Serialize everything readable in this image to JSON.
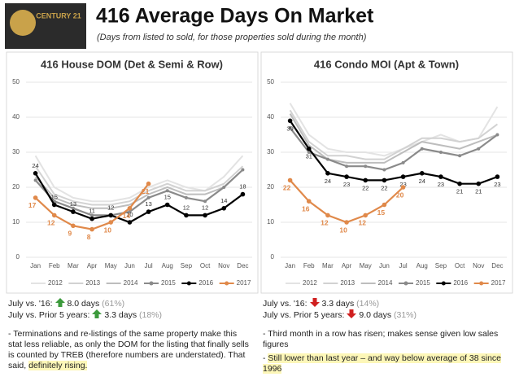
{
  "slide": {
    "title": "416 Average Days On Market",
    "subtitle": "(Days from listed to sold, for those properties sold during the month)",
    "logo": "CENTURY 21"
  },
  "chart_data": [
    {
      "type": "line",
      "title": "416 House DOM (Det & Semi & Row)",
      "categories": [
        "Jan",
        "Feb",
        "Mar",
        "Apr",
        "May",
        "Jun",
        "Jul",
        "Aug",
        "Sep",
        "Oct",
        "Nov",
        "Dec"
      ],
      "ylim": [
        0,
        50
      ],
      "yticks": [
        0,
        10,
        20,
        30,
        40,
        50
      ],
      "grid": true,
      "legend": "bottom",
      "series": [
        {
          "name": "2012",
          "color": "#e3e3e3",
          "values": [
            29,
            20,
            17,
            16,
            16,
            17,
            20,
            22,
            20,
            19,
            23,
            29
          ]
        },
        {
          "name": "2013",
          "color": "#d2d2d2",
          "values": [
            26,
            18,
            16,
            15,
            15,
            16,
            19,
            21,
            19,
            19,
            21,
            26
          ]
        },
        {
          "name": "2014",
          "color": "#bdbdbd",
          "values": [
            23,
            17,
            15,
            14,
            14,
            15,
            18,
            20,
            18,
            18,
            20,
            25
          ]
        },
        {
          "name": "2015",
          "color": "#8a8a8a",
          "markers": true,
          "values": [
            22,
            16,
            14,
            12,
            12,
            13,
            17,
            19,
            17,
            16,
            20,
            25
          ]
        },
        {
          "name": "2016",
          "color": "#000000",
          "markers": true,
          "labels": "above",
          "values": [
            24,
            15,
            13,
            11,
            12,
            10,
            13,
            15,
            12,
            12,
            14,
            18
          ]
        },
        {
          "name": "2017",
          "color": "#e0894a",
          "markers": true,
          "labels": "below",
          "values": [
            17,
            12,
            9,
            8,
            10,
            14,
            21,
            null,
            null,
            null,
            null,
            null
          ]
        }
      ]
    },
    {
      "type": "line",
      "title": "416 Condo MOI (Apt & Town)",
      "categories": [
        "Jan",
        "Feb",
        "Mar",
        "Apr",
        "May",
        "Jun",
        "Jul",
        "Aug",
        "Sep",
        "Oct",
        "Nov",
        "Dec"
      ],
      "ylim": [
        0,
        50
      ],
      "yticks": [
        0,
        10,
        20,
        30,
        40,
        50
      ],
      "grid": true,
      "legend": "bottom",
      "series": [
        {
          "name": "2012",
          "color": "#e3e3e3",
          "values": [
            44,
            35,
            31,
            30,
            30,
            29,
            31,
            33,
            35,
            33,
            34,
            43
          ]
        },
        {
          "name": "2013",
          "color": "#d2d2d2",
          "values": [
            42,
            33,
            29,
            29,
            28,
            28,
            31,
            34,
            34,
            33,
            34,
            38
          ]
        },
        {
          "name": "2014",
          "color": "#bdbdbd",
          "values": [
            41,
            32,
            28,
            27,
            27,
            27,
            30,
            33,
            32,
            31,
            33,
            35
          ]
        },
        {
          "name": "2015",
          "color": "#8a8a8a",
          "markers": true,
          "values": [
            37,
            30,
            28,
            26,
            26,
            25,
            27,
            31,
            30,
            29,
            31,
            35
          ]
        },
        {
          "name": "2016",
          "color": "#000000",
          "markers": true,
          "labels": "below",
          "values": [
            39,
            31,
            24,
            23,
            22,
            22,
            23,
            24,
            23,
            21,
            21,
            23
          ]
        },
        {
          "name": "2017",
          "color": "#e0894a",
          "markers": true,
          "labels": "below",
          "values": [
            22,
            16,
            12,
            10,
            12,
            15,
            20,
            null,
            null,
            null,
            null,
            null
          ]
        }
      ]
    }
  ],
  "notes": [
    {
      "lines": [
        {
          "label": "July vs. '16:",
          "direction": "up",
          "value": "8.0 days",
          "pct": "(61%)"
        },
        {
          "label": "July vs. Prior 5 years:",
          "direction": "up",
          "value": "3.3 days",
          "pct": "(18%)"
        }
      ],
      "bullets": [
        {
          "text": "- Terminations and re-listings of the same property make this stat less reliable, as only the DOM for the listing that finally sells is counted by TREB (therefore numbers are understated). That said,",
          "highlight": "definitely rising."
        }
      ]
    },
    {
      "lines": [
        {
          "label": "July vs. '16:",
          "direction": "down",
          "value": "3.3 days",
          "pct": "(14%)"
        },
        {
          "label": "July vs. Prior 5 years:",
          "direction": "down",
          "value": "9.0 days",
          "pct": "(31%)"
        }
      ],
      "bullets": [
        {
          "text": "- Third month in a row has risen; makes sense given low sales figures",
          "highlight": null
        },
        {
          "text": "-",
          "highlight": "Still lower than last year – and way below average of 38 since 1996"
        }
      ]
    }
  ]
}
